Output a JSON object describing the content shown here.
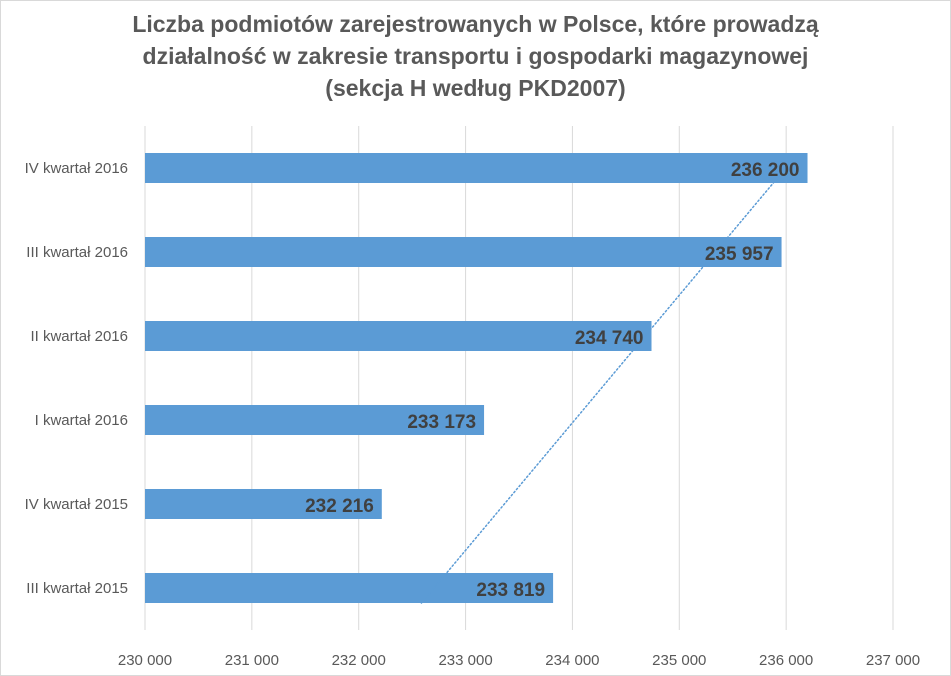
{
  "chart_data": {
    "type": "bar",
    "orientation": "horizontal",
    "title_lines": [
      "Liczba podmiotów zarejestrowanych w Polsce, które prowadzą",
      "działalność w zakresie transportu i gospodarki magazynowej",
      "(sekcja H według PKD2007)"
    ],
    "categories": [
      "IV kwartał 2016",
      "III kwartał 2016",
      "II kwartał 2016",
      "I kwartał 2016",
      "IV kwartał 2015",
      "III kwartał 2015"
    ],
    "values": [
      236200,
      235957,
      234740,
      233173,
      232216,
      233819
    ],
    "data_labels": [
      "236 200",
      "235 957",
      "234 740",
      "233 173",
      "232 216",
      "233 819"
    ],
    "xlim": [
      230000,
      237000
    ],
    "x_ticks": [
      230000,
      231000,
      232000,
      233000,
      234000,
      235000,
      236000,
      237000
    ],
    "x_tick_labels": [
      "230 000",
      "231 000",
      "232 000",
      "233 000",
      "234 000",
      "235 000",
      "236 000",
      "237 000"
    ],
    "grid": "vertical",
    "trendline": {
      "type": "linear",
      "style": "dotted"
    },
    "bar_color": "#5b9bd5",
    "trendline_color": "#5b9bd5",
    "grid_color": "#d9d9d9"
  }
}
